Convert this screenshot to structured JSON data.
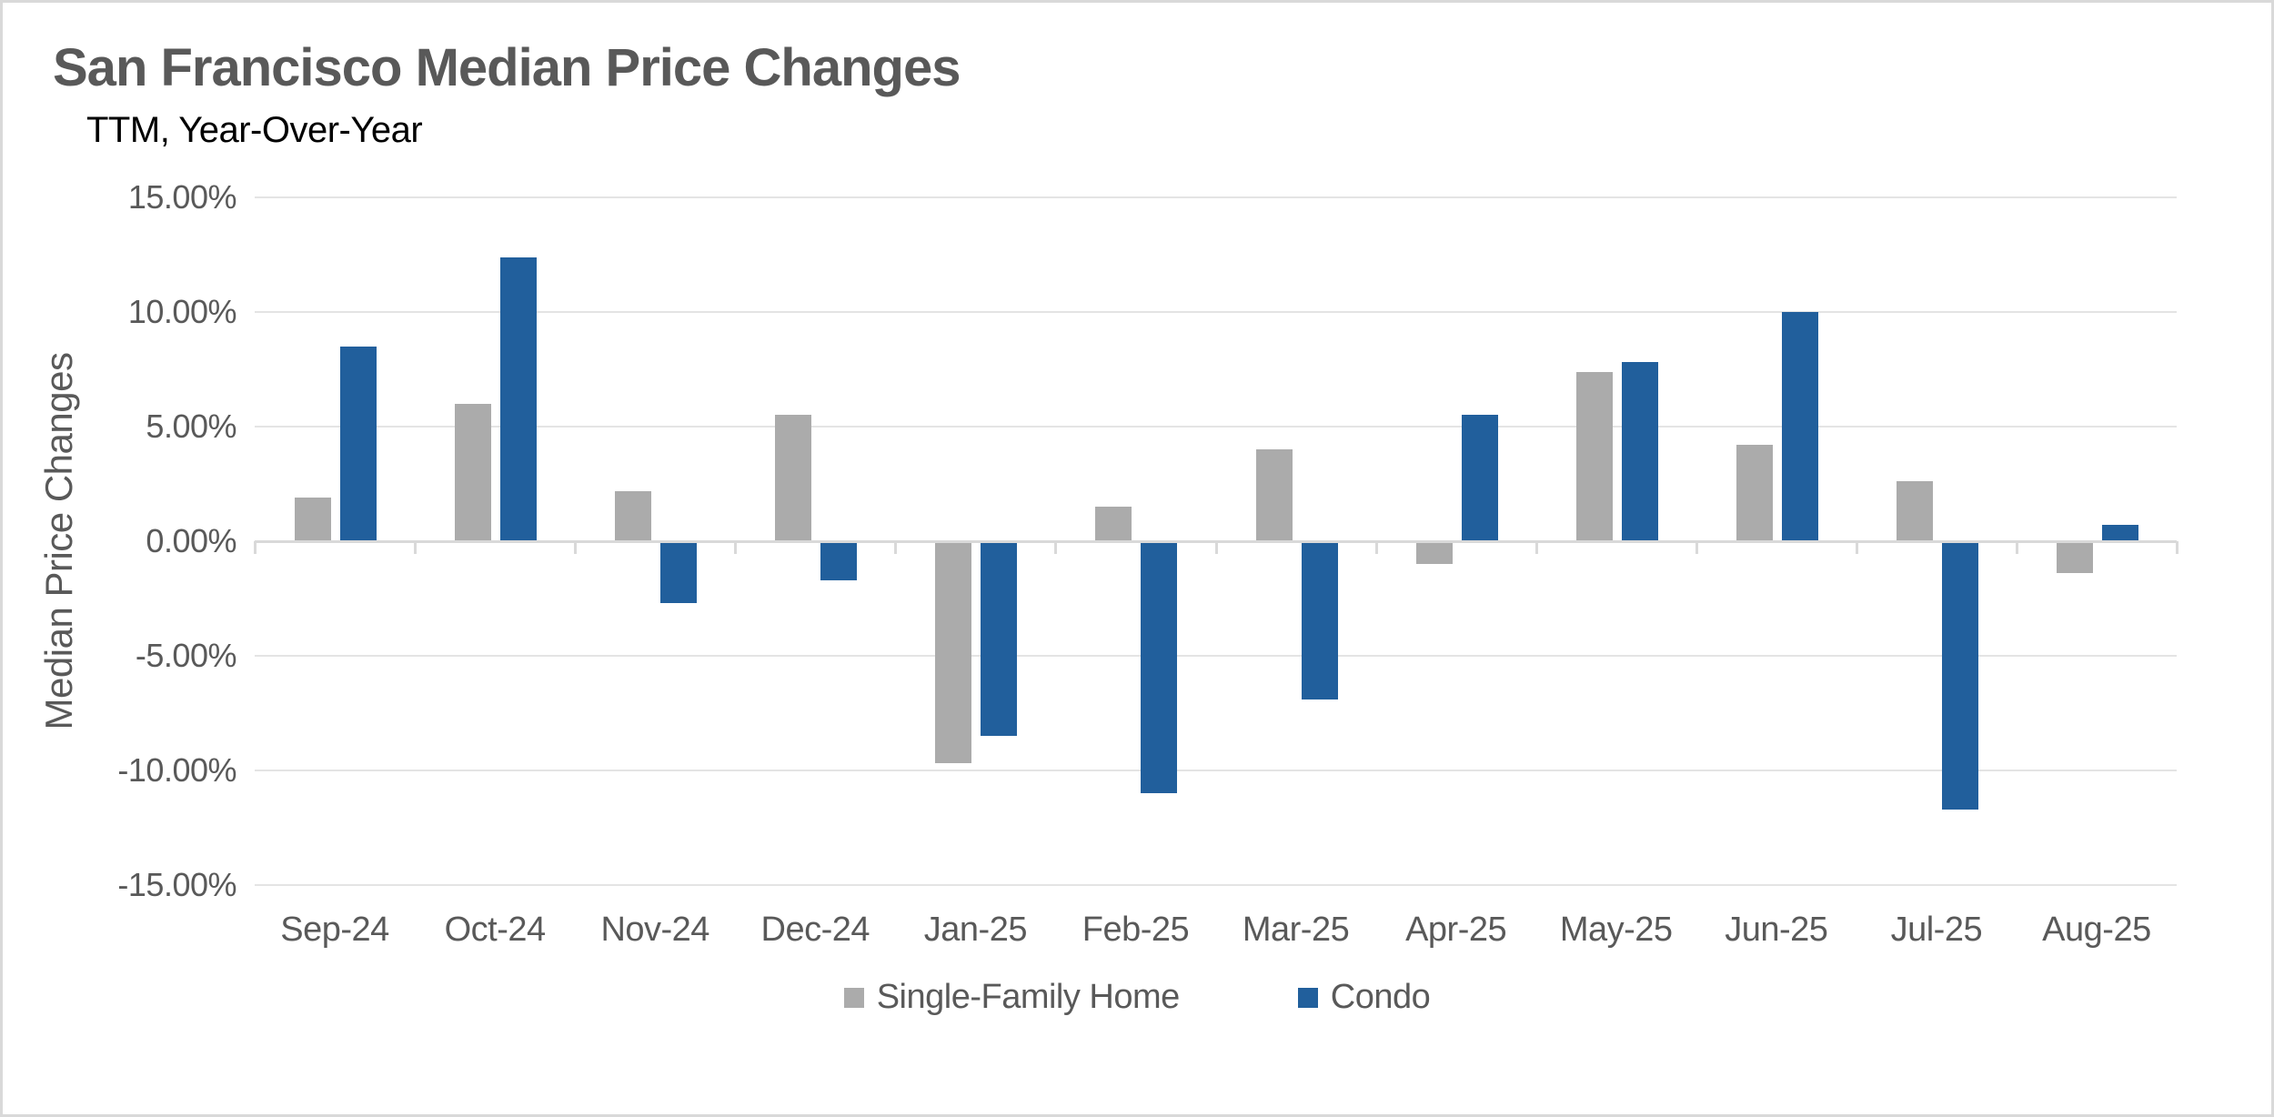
{
  "chart_data": {
    "type": "bar",
    "title": "San Francisco Median Price Changes",
    "subtitle": "TTM, Year-Over-Year",
    "ylabel": "Median Price Changes",
    "xlabel": "",
    "categories": [
      "Sep-24",
      "Oct-24",
      "Nov-24",
      "Dec-24",
      "Jan-25",
      "Feb-25",
      "Mar-25",
      "Apr-25",
      "May-25",
      "Jun-25",
      "Jul-25",
      "Aug-25"
    ],
    "series": [
      {
        "name": "Single-Family Home",
        "color": "#ABABAB",
        "values": [
          1.9,
          6.0,
          2.2,
          5.5,
          -9.7,
          1.5,
          4.0,
          -1.0,
          7.4,
          4.2,
          2.6,
          -1.4
        ]
      },
      {
        "name": "Condo",
        "color": "#215F9C",
        "values": [
          8.5,
          12.4,
          -2.7,
          -1.7,
          -8.5,
          -11.0,
          -6.9,
          5.5,
          7.8,
          10.0,
          -11.7,
          0.7
        ]
      }
    ],
    "ylim": [
      -15,
      15
    ],
    "ytick_step": 5,
    "yticks": [
      "15.00%",
      "10.00%",
      "5.00%",
      "0.00%",
      "-5.00%",
      "-10.00%",
      "-15.00%"
    ],
    "grid": true,
    "legend_position": "bottom"
  },
  "colors": {
    "grid": "#E4E4E4",
    "axis": "#D9D9D9",
    "text": "#595959",
    "subtitle_text": "#000000",
    "frame_border": "#D9D9D9",
    "background": "#FFFFFF"
  }
}
